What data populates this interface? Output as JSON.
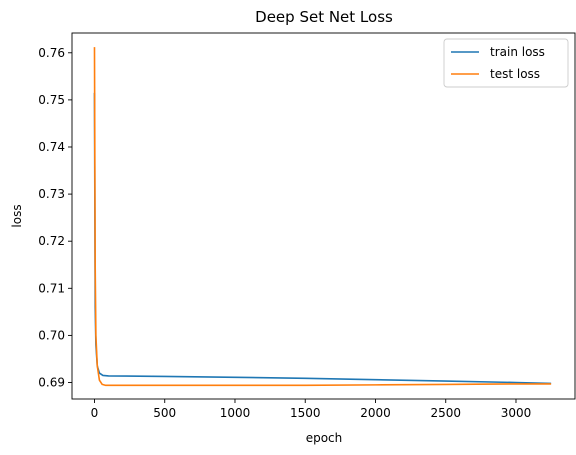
{
  "chart_data": {
    "type": "line",
    "title": "Deep Set Net Loss",
    "xlabel": "epoch",
    "ylabel": "loss",
    "xlim": [
      -160,
      3420
    ],
    "ylim": [
      0.6865,
      0.7642
    ],
    "xticks": [
      0,
      500,
      1000,
      1500,
      2000,
      2500,
      3000
    ],
    "yticks": [
      0.69,
      0.7,
      0.71,
      0.72,
      0.73,
      0.74,
      0.75,
      0.76
    ],
    "ytick_labels": [
      "0.69",
      "0.70",
      "0.71",
      "0.72",
      "0.73",
      "0.74",
      "0.75",
      "0.76"
    ],
    "grid": false,
    "legend_position": "top-right",
    "series": [
      {
        "name": "train loss",
        "color": "#1f77b4",
        "points": [
          [
            0,
            0.7515
          ],
          [
            5,
            0.706
          ],
          [
            10,
            0.698
          ],
          [
            20,
            0.6935
          ],
          [
            35,
            0.692
          ],
          [
            60,
            0.6915
          ],
          [
            100,
            0.6914
          ],
          [
            500,
            0.6913
          ],
          [
            1000,
            0.6911
          ],
          [
            1500,
            0.6909
          ],
          [
            2000,
            0.6906
          ],
          [
            2500,
            0.6903
          ],
          [
            3000,
            0.69
          ],
          [
            3250,
            0.6898
          ]
        ]
      },
      {
        "name": "test loss",
        "color": "#ff7f0e",
        "points": [
          [
            0,
            0.7612
          ],
          [
            5,
            0.715
          ],
          [
            10,
            0.7
          ],
          [
            20,
            0.6935
          ],
          [
            35,
            0.6905
          ],
          [
            55,
            0.6896
          ],
          [
            80,
            0.6894
          ],
          [
            500,
            0.6894
          ],
          [
            1000,
            0.6894
          ],
          [
            1500,
            0.6894
          ],
          [
            2000,
            0.6895
          ],
          [
            2500,
            0.6896
          ],
          [
            3000,
            0.6897
          ],
          [
            3250,
            0.6897
          ]
        ]
      }
    ]
  }
}
